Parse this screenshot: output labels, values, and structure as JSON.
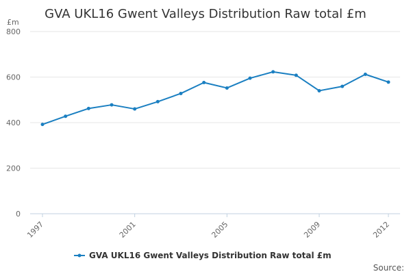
{
  "chart_data": {
    "type": "line",
    "title": "GVA UKL16 Gwent Valleys Distribution Raw total £m",
    "ylabel": "£m",
    "xlabel": "",
    "ylim": [
      0,
      800
    ],
    "yticks": [
      0,
      200,
      400,
      600,
      800
    ],
    "xlim": [
      1997,
      2012
    ],
    "xticks": [
      1997,
      2001,
      2005,
      2009,
      2012
    ],
    "grid": true,
    "legend_position": "bottom-center",
    "x": [
      1997,
      1998,
      1999,
      2000,
      2001,
      2002,
      2003,
      2004,
      2005,
      2006,
      2007,
      2008,
      2009,
      2010,
      2011,
      2012
    ],
    "series": [
      {
        "name": "GVA UKL16 Gwent Valleys Distribution Raw total £m",
        "color": "#1a7fc1",
        "values": [
          392,
          428,
          462,
          478,
          460,
          492,
          528,
          576,
          552,
          595,
          623,
          608,
          540,
          559,
          612,
          578
        ]
      }
    ]
  },
  "source_label": "Source:"
}
